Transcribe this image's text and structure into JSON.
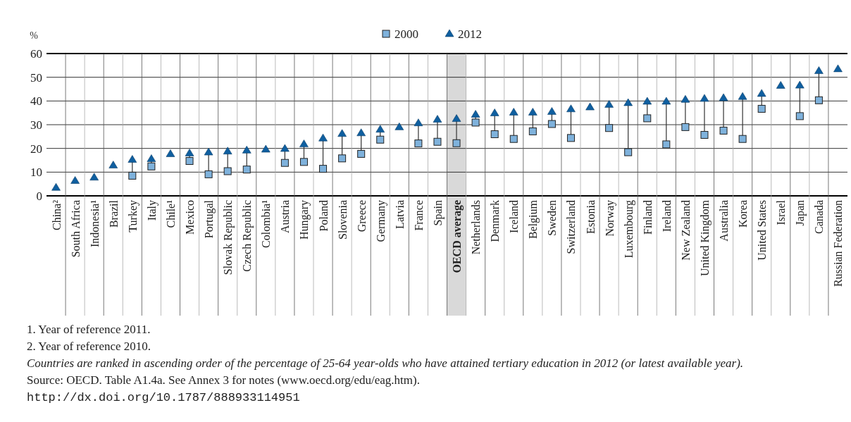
{
  "chart_data": {
    "type": "scatter",
    "ylabel": "%",
    "categories": [
      "China²",
      "South Africa",
      "Indonesia¹",
      "Brazil",
      "Turkey",
      "Italy",
      "Chile¹",
      "Mexico",
      "Portugal",
      "Slovak Republic",
      "Czech Republic",
      "Colombia¹",
      "Austria",
      "Hungary",
      "Poland",
      "Slovenia",
      "Greece",
      "Germany",
      "Latvia",
      "France",
      "Spain",
      "OECD average",
      "Netherlands",
      "Denmark",
      "Iceland",
      "Belgium",
      "Sweden",
      "Switzerland",
      "Estonia",
      "Norway",
      "Luxembourg",
      "Finland",
      "Ireland",
      "New Zealand",
      "United Kingdom",
      "Australia",
      "Korea",
      "United States",
      "Israel",
      "Japan",
      "Canada",
      "Russian Federation"
    ],
    "series": [
      {
        "name": "2000",
        "color": "#7fb2dc",
        "marker": "square",
        "values": [
          null,
          null,
          null,
          null,
          8.5,
          12.4,
          null,
          14.7,
          9.1,
          10.4,
          11.1,
          null,
          13.9,
          14.3,
          11.4,
          15.8,
          17.7,
          23.7,
          null,
          22.1,
          22.8,
          22.2,
          30.9,
          26,
          24,
          27.2,
          30.3,
          24.4,
          null,
          28.6,
          18.4,
          32.7,
          21.7,
          29,
          25.7,
          27.5,
          24,
          36.7,
          null,
          33.6,
          40.3,
          null
        ]
      },
      {
        "name": "2012",
        "color": "#0f5fa0",
        "marker": "triangle",
        "values": [
          3.5,
          6.4,
          7.8,
          12.9,
          15.3,
          15.6,
          17.7,
          18,
          18.4,
          18.8,
          19.2,
          19.6,
          19.9,
          21.8,
          24.3,
          26.2,
          26.5,
          28,
          29,
          30.7,
          32.2,
          32.5,
          34.3,
          34.9,
          35.2,
          35.2,
          35.5,
          36.6,
          37.4,
          38.5,
          39.2,
          39.8,
          39.8,
          40.6,
          41,
          41.3,
          41.8,
          43.1,
          46.5,
          46.6,
          52.7,
          53.5
        ]
      }
    ],
    "ylim": [
      0,
      60
    ],
    "yticks": [
      0,
      10,
      20,
      30,
      40,
      50,
      60
    ],
    "grid": true,
    "legend": "top",
    "bands": [
      {
        "axis": "x",
        "from": "OECD average",
        "to": "OECD average",
        "color": "#d9d9d9"
      }
    ],
    "annotations": [
      "1. Year of reference 2011.",
      "2. Year of reference 2010.",
      "Countries are ranked in ascending order of the percentage of 25-64 year-olds who have attained tertiary education in 2012 (or latest available year).",
      "Source: OECD. Table A1.4a. See Annex 3 for notes (www.oecd.org/edu/eag.htm).",
      "http://dx.doi.org/10.1787/888933114951"
    ]
  }
}
